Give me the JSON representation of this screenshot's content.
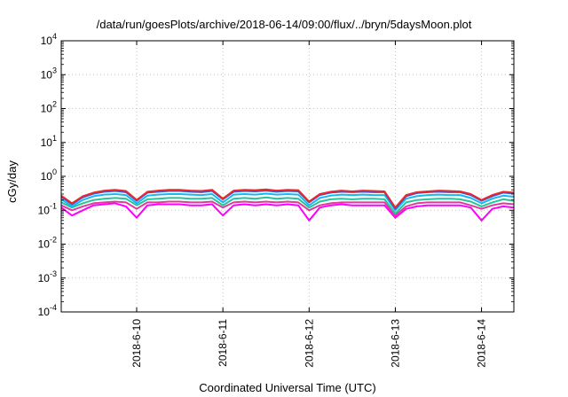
{
  "chart_data": {
    "type": "line",
    "title": "/data/run/goesPlots/archive/2018-06-14/09:00/flux/../bryn/5daysMoon.plot",
    "xlabel": "Coordinated Universal Time (UTC)",
    "ylabel": "cGy/day",
    "y_scale": "log",
    "ylim": [
      0.0001,
      10000
    ],
    "y_ticks": [
      {
        "value": 0.0001,
        "base": "10",
        "exp": "-4"
      },
      {
        "value": 0.001,
        "base": "10",
        "exp": "-3"
      },
      {
        "value": 0.01,
        "base": "10",
        "exp": "-2"
      },
      {
        "value": 0.1,
        "base": "10",
        "exp": "-1"
      },
      {
        "value": 1,
        "base": "10",
        "exp": "0"
      },
      {
        "value": 10,
        "base": "10",
        "exp": "1"
      },
      {
        "value": 100,
        "base": "10",
        "exp": "2"
      },
      {
        "value": 1000,
        "base": "10",
        "exp": "3"
      },
      {
        "value": 10000,
        "base": "10",
        "exp": "4"
      }
    ],
    "xlim": [
      "2018-06-09 03:00",
      "2018-06-14 09:00"
    ],
    "x_ticks": [
      {
        "value": "2018-06-10 00:00",
        "label": "2018-6-10"
      },
      {
        "value": "2018-06-11 00:00",
        "label": "2018-6-11"
      },
      {
        "value": "2018-06-12 00:00",
        "label": "2018-6-12"
      },
      {
        "value": "2018-06-13 00:00",
        "label": "2018-6-13"
      },
      {
        "value": "2018-06-14 00:00",
        "label": "2018-6-14"
      }
    ],
    "grid": true,
    "x": [
      "2018-06-09 03:00",
      "2018-06-09 06:00",
      "2018-06-09 09:00",
      "2018-06-09 12:00",
      "2018-06-09 15:00",
      "2018-06-09 18:00",
      "2018-06-09 21:00",
      "2018-06-10 00:00",
      "2018-06-10 03:00",
      "2018-06-10 06:00",
      "2018-06-10 09:00",
      "2018-06-10 12:00",
      "2018-06-10 15:00",
      "2018-06-10 18:00",
      "2018-06-10 21:00",
      "2018-06-11 00:00",
      "2018-06-11 03:00",
      "2018-06-11 06:00",
      "2018-06-11 09:00",
      "2018-06-11 12:00",
      "2018-06-11 15:00",
      "2018-06-11 18:00",
      "2018-06-11 21:00",
      "2018-06-12 00:00",
      "2018-06-12 03:00",
      "2018-06-12 06:00",
      "2018-06-12 09:00",
      "2018-06-12 12:00",
      "2018-06-12 15:00",
      "2018-06-12 18:00",
      "2018-06-12 21:00",
      "2018-06-13 00:00",
      "2018-06-13 03:00",
      "2018-06-13 06:00",
      "2018-06-13 09:00",
      "2018-06-13 12:00",
      "2018-06-13 15:00",
      "2018-06-13 18:00",
      "2018-06-13 21:00",
      "2018-06-14 00:00",
      "2018-06-14 03:00",
      "2018-06-14 06:00",
      "2018-06-14 09:00"
    ],
    "series": [
      {
        "color": "#e8282b",
        "values": [
          0.27,
          0.16,
          0.26,
          0.33,
          0.38,
          0.4,
          0.37,
          0.2,
          0.35,
          0.38,
          0.4,
          0.4,
          0.38,
          0.37,
          0.4,
          0.22,
          0.38,
          0.4,
          0.39,
          0.41,
          0.38,
          0.4,
          0.39,
          0.18,
          0.3,
          0.35,
          0.38,
          0.36,
          0.38,
          0.37,
          0.36,
          0.12,
          0.28,
          0.34,
          0.36,
          0.38,
          0.37,
          0.36,
          0.3,
          0.2,
          0.28,
          0.35,
          0.33
        ]
      },
      {
        "color": "#3a5ad8",
        "values": [
          0.25,
          0.15,
          0.24,
          0.31,
          0.35,
          0.37,
          0.34,
          0.19,
          0.33,
          0.35,
          0.37,
          0.37,
          0.35,
          0.34,
          0.37,
          0.21,
          0.35,
          0.37,
          0.36,
          0.38,
          0.35,
          0.37,
          0.36,
          0.17,
          0.28,
          0.33,
          0.35,
          0.34,
          0.35,
          0.34,
          0.34,
          0.11,
          0.26,
          0.32,
          0.34,
          0.35,
          0.34,
          0.34,
          0.28,
          0.19,
          0.26,
          0.33,
          0.31
        ]
      },
      {
        "color": "#17b8f0",
        "values": [
          0.21,
          0.13,
          0.2,
          0.26,
          0.29,
          0.3,
          0.28,
          0.16,
          0.27,
          0.29,
          0.3,
          0.3,
          0.29,
          0.28,
          0.3,
          0.17,
          0.29,
          0.3,
          0.29,
          0.31,
          0.29,
          0.3,
          0.29,
          0.14,
          0.23,
          0.27,
          0.29,
          0.28,
          0.29,
          0.28,
          0.28,
          0.1,
          0.22,
          0.26,
          0.28,
          0.29,
          0.28,
          0.28,
          0.23,
          0.16,
          0.22,
          0.27,
          0.25
        ]
      },
      {
        "color": "#25c49a",
        "values": [
          0.17,
          0.12,
          0.16,
          0.2,
          0.22,
          0.23,
          0.22,
          0.14,
          0.21,
          0.22,
          0.23,
          0.23,
          0.22,
          0.22,
          0.23,
          0.14,
          0.22,
          0.23,
          0.22,
          0.24,
          0.22,
          0.23,
          0.22,
          0.12,
          0.18,
          0.21,
          0.22,
          0.21,
          0.22,
          0.22,
          0.21,
          0.08,
          0.17,
          0.2,
          0.21,
          0.22,
          0.22,
          0.21,
          0.18,
          0.13,
          0.17,
          0.21,
          0.19
        ]
      },
      {
        "color": "#e03a9a",
        "values": [
          0.14,
          0.1,
          0.13,
          0.16,
          0.17,
          0.18,
          0.17,
          0.11,
          0.17,
          0.17,
          0.18,
          0.18,
          0.17,
          0.17,
          0.18,
          0.12,
          0.17,
          0.18,
          0.17,
          0.18,
          0.17,
          0.18,
          0.17,
          0.1,
          0.14,
          0.16,
          0.17,
          0.17,
          0.17,
          0.17,
          0.17,
          0.07,
          0.13,
          0.16,
          0.17,
          0.17,
          0.17,
          0.17,
          0.14,
          0.11,
          0.14,
          0.16,
          0.15
        ]
      },
      {
        "color": "#ff00ff",
        "values": [
          0.12,
          0.07,
          0.1,
          0.14,
          0.15,
          0.16,
          0.13,
          0.06,
          0.14,
          0.15,
          0.15,
          0.15,
          0.14,
          0.14,
          0.15,
          0.07,
          0.14,
          0.15,
          0.14,
          0.15,
          0.14,
          0.15,
          0.14,
          0.05,
          0.12,
          0.14,
          0.15,
          0.14,
          0.14,
          0.14,
          0.14,
          0.06,
          0.11,
          0.13,
          0.14,
          0.14,
          0.14,
          0.14,
          0.12,
          0.05,
          0.11,
          0.13,
          0.12
        ]
      }
    ]
  }
}
